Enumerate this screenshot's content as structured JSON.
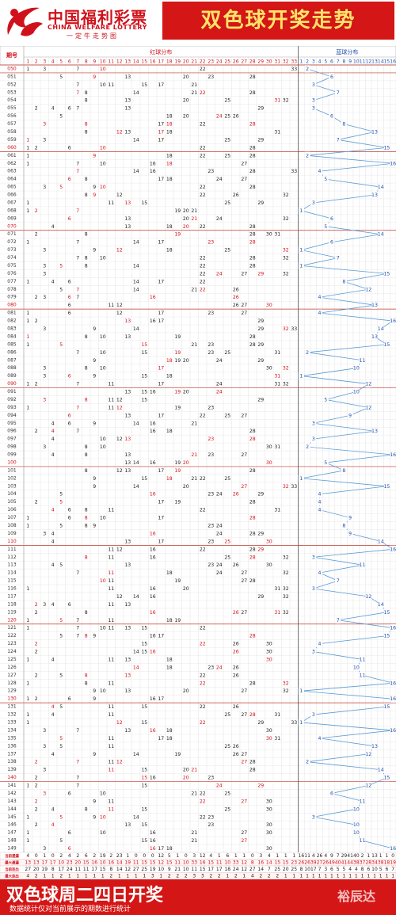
{
  "header": {
    "logo_cn": "中国福利彩票",
    "logo_en": "CHINA WELFARE LOTTERY",
    "logo_slogan": "一定牛走势图",
    "title": "双色球开奖走势"
  },
  "footer": {
    "main": "双色球周二四日开奖",
    "sub": "数据统计仅对当前展示的期数进行统计",
    "watermark": "裕辰达"
  },
  "chart_data": {
    "type": "table",
    "period_header": "期号",
    "red_header": "红球分布",
    "blue_header": "蓝球分布",
    "red_range": [
      1,
      33
    ],
    "blue_range": [
      1,
      16
    ],
    "red_color": "#d0111b",
    "blue_color": "#1f4fae",
    "line_color": "#5b9bd5",
    "draws": [
      {
        "p": "050",
        "r": [
          1,
          3,
          7,
          10,
          22,
          33
        ],
        "b": 2
      },
      {
        "p": "051",
        "r": [
          5,
          9,
          13,
          20,
          23,
          28
        ],
        "b": 6
      },
      {
        "p": "052",
        "r": [
          7,
          10,
          11,
          15,
          17,
          21
        ],
        "b": 3
      },
      {
        "p": "053",
        "r": [
          7,
          8,
          14,
          21,
          22,
          28
        ],
        "b": 7
      },
      {
        "p": "054",
        "r": [
          8,
          13,
          20,
          25,
          31,
          32
        ],
        "b": 3
      },
      {
        "p": "055",
        "r": [
          2,
          4,
          6,
          7,
          13,
          29
        ],
        "b": 3
      },
      {
        "p": "056",
        "r": [
          5,
          18,
          20,
          24,
          25,
          26
        ],
        "b": 6
      },
      {
        "p": "057",
        "r": [
          3,
          8,
          17,
          18,
          22,
          28
        ],
        "b": 8
      },
      {
        "p": "058",
        "r": [
          8,
          12,
          13,
          17,
          18,
          31
        ],
        "b": 13
      },
      {
        "p": "059",
        "r": [
          1,
          3,
          14,
          17,
          25,
          29
        ],
        "b": 7
      },
      {
        "p": "060",
        "r": [
          1,
          2,
          6,
          10,
          22,
          28
        ],
        "b": 15
      },
      {
        "p": "061",
        "r": [
          1,
          9,
          18,
          22,
          25,
          28
        ],
        "b": 2
      },
      {
        "p": "062",
        "r": [
          1,
          7,
          10,
          16,
          18,
          27
        ],
        "b": 16
      },
      {
        "p": "063",
        "r": [
          7,
          14,
          16,
          23,
          28,
          33
        ],
        "b": 4
      },
      {
        "p": "064",
        "r": [
          6,
          8,
          17,
          18,
          24,
          27
        ],
        "b": 5
      },
      {
        "p": "065",
        "r": [
          3,
          5,
          9,
          10,
          22,
          28
        ],
        "b": 14
      },
      {
        "p": "066",
        "r": [
          8,
          9,
          12,
          22,
          26,
          32
        ],
        "b": 13
      },
      {
        "p": "067",
        "r": [
          1,
          11,
          13,
          15,
          25,
          29
        ],
        "b": 3
      },
      {
        "p": "068",
        "r": [
          1,
          2,
          7,
          19,
          20,
          21
        ],
        "b": 1
      },
      {
        "p": "069",
        "r": [
          6,
          13,
          20,
          21,
          24,
          32
        ],
        "b": 6
      },
      {
        "p": "070",
        "r": [
          4,
          13,
          18,
          20,
          22,
          28
        ],
        "b": 5
      },
      {
        "p": "071",
        "r": [
          2,
          8,
          19,
          28,
          30,
          31
        ],
        "b": 14
      },
      {
        "p": "072",
        "r": [
          1,
          7,
          14,
          17,
          23,
          28
        ],
        "b": 6
      },
      {
        "p": "073",
        "r": [
          3,
          9,
          12,
          18,
          25,
          32
        ],
        "b": 1
      },
      {
        "p": "074",
        "r": [
          7,
          8,
          10,
          22,
          28,
          32
        ],
        "b": 7
      },
      {
        "p": "075",
        "r": [
          3,
          5,
          8,
          14,
          22,
          28
        ],
        "b": 1
      },
      {
        "p": "076",
        "r": [
          3,
          22,
          24,
          27,
          29,
          32
        ],
        "b": 15
      },
      {
        "p": "077",
        "r": [
          1,
          4,
          6,
          14,
          17,
          22
        ],
        "b": 8
      },
      {
        "p": "078",
        "r": [
          5,
          7,
          14,
          21,
          22,
          26
        ],
        "b": 12
      },
      {
        "p": "079",
        "r": [
          2,
          3,
          6,
          7,
          16,
          26
        ],
        "b": 4
      },
      {
        "p": "080",
        "r": [
          6,
          11,
          12,
          26,
          27,
          30
        ],
        "b": 13
      },
      {
        "p": "081",
        "r": [
          1,
          6,
          12,
          17,
          23,
          27
        ],
        "b": 4
      },
      {
        "p": "082",
        "r": [
          1,
          2,
          13,
          16,
          17,
          29
        ],
        "b": 16
      },
      {
        "p": "083",
        "r": [
          3,
          9,
          14,
          29,
          32,
          33
        ],
        "b": 14
      },
      {
        "p": "084",
        "r": [
          1,
          8,
          10,
          13,
          19,
          28
        ],
        "b": 13
      },
      {
        "p": "085",
        "r": [
          1,
          5,
          15,
          21,
          23,
          28,
          29
        ],
        "b": 15
      },
      {
        "p": "086",
        "r": [
          7,
          10,
          15,
          19,
          23,
          25,
          31
        ],
        "b": 2
      },
      {
        "p": "087",
        "r": [
          9,
          18,
          19,
          20,
          24,
          29
        ],
        "b": 11
      },
      {
        "p": "088",
        "r": [
          3,
          8,
          10,
          17,
          30,
          32
        ],
        "b": 10
      },
      {
        "p": "089",
        "r": [
          3,
          6,
          9,
          15,
          18,
          31
        ],
        "b": 1
      },
      {
        "p": "090",
        "r": [
          1,
          2,
          7,
          11,
          17,
          24,
          31,
          32
        ],
        "b": 12
      },
      {
        "p": "091",
        "r": [
          13,
          15,
          16,
          19,
          20,
          24
        ],
        "b": 10
      },
      {
        "p": "092",
        "r": [
          3,
          8,
          11,
          12,
          15,
          29
        ],
        "b": 5
      },
      {
        "p": "093",
        "r": [
          1,
          7,
          11,
          12,
          19,
          23
        ],
        "b": 12
      },
      {
        "p": "094",
        "r": [
          6,
          13,
          17,
          22,
          25,
          27
        ],
        "b": 9
      },
      {
        "p": "095",
        "r": [
          4,
          6,
          9,
          14,
          16,
          21
        ],
        "b": 3
      },
      {
        "p": "096",
        "r": [
          2,
          4,
          7,
          16,
          18,
          28
        ],
        "b": 13
      },
      {
        "p": "097",
        "r": [
          4,
          10,
          12,
          13,
          23,
          28
        ],
        "b": 3
      },
      {
        "p": "098",
        "r": [
          3,
          8,
          10,
          30,
          31
        ],
        "b": 2
      },
      {
        "p": "099",
        "r": [
          4,
          8,
          13,
          21,
          23,
          27
        ],
        "b": 16
      },
      {
        "p": "100",
        "r": [
          13,
          14,
          16,
          19,
          20,
          30
        ],
        "b": 5
      },
      {
        "p": "101",
        "r": [
          8,
          12,
          13,
          17,
          19,
          28
        ],
        "b": 8
      },
      {
        "p": "102",
        "r": [
          9,
          15,
          18,
          21,
          22,
          25
        ],
        "b": 1
      },
      {
        "p": "103",
        "r": [
          9,
          14,
          20,
          27,
          32,
          33
        ],
        "b": 15
      },
      {
        "p": "104",
        "r": [
          5,
          16,
          23,
          24,
          26,
          29
        ],
        "b": 4
      },
      {
        "p": "105",
        "r": [
          2,
          5,
          17,
          19,
          28
        ],
        "b": 4
      },
      {
        "p": "106",
        "r": [
          4,
          6,
          8,
          11,
          22,
          31
        ],
        "b": 4
      },
      {
        "p": "107",
        "r": [
          1,
          6,
          8,
          10,
          17,
          28
        ],
        "b": 9
      },
      {
        "p": "108",
        "r": [
          1,
          5,
          8,
          9,
          23,
          24
        ],
        "b": 8
      },
      {
        "p": "109",
        "r": [
          3,
          4,
          16,
          24,
          28,
          29
        ],
        "b": 9
      },
      {
        "p": "110",
        "r": [
          4,
          13,
          17,
          23,
          25,
          30
        ],
        "b": 14
      },
      {
        "p": "111",
        "r": [
          11,
          12,
          16,
          22,
          28,
          29
        ],
        "b": 16
      },
      {
        "p": "112",
        "r": [
          8,
          11,
          16,
          25,
          28,
          32
        ],
        "b": 3
      },
      {
        "p": "113",
        "r": [
          4,
          5,
          13,
          23,
          24,
          26,
          30
        ],
        "b": 11
      },
      {
        "p": "114",
        "r": [
          7,
          11,
          18,
          24,
          27,
          32
        ],
        "b": 4
      },
      {
        "p": "115",
        "r": [
          10,
          11,
          19,
          27,
          28
        ],
        "b": 7
      },
      {
        "p": "116",
        "r": [
          1,
          11,
          16,
          20,
          31,
          32
        ],
        "b": 3
      },
      {
        "p": "117",
        "r": [
          12,
          14,
          16,
          29,
          32
        ],
        "b": 12
      },
      {
        "p": "118",
        "r": [
          2,
          3,
          4,
          6,
          11,
          13
        ],
        "b": 14
      },
      {
        "p": "119",
        "r": [
          2,
          8,
          16,
          26,
          27,
          31,
          32
        ],
        "b": 15
      },
      {
        "p": "120",
        "r": [
          1,
          5,
          7,
          11,
          18,
          19
        ],
        "b": 7
      },
      {
        "p": "121",
        "r": [
          1,
          7,
          10,
          11,
          13,
          15,
          22
        ],
        "b": 16
      },
      {
        "p": "122",
        "r": [
          5,
          7,
          8,
          9,
          16,
          17,
          28
        ],
        "b": 15
      },
      {
        "p": "123",
        "r": [
          2,
          15,
          22,
          26,
          30
        ],
        "b": 4
      },
      {
        "p": "124",
        "r": [
          2,
          14,
          15,
          16,
          26,
          30
        ],
        "b": 3
      },
      {
        "p": "125",
        "r": [
          1,
          4,
          11,
          13,
          18,
          30
        ],
        "b": 11
      },
      {
        "p": "126",
        "r": [
          14,
          18,
          23,
          24,
          26
        ],
        "b": 10
      },
      {
        "p": "127",
        "r": [
          2,
          5,
          8,
          13,
          22,
          26
        ],
        "b": 11
      },
      {
        "p": "128",
        "r": [
          1,
          8,
          11,
          22,
          28,
          32
        ],
        "b": 16
      },
      {
        "p": "129",
        "r": [
          9,
          10,
          13,
          20,
          27,
          32
        ],
        "b": 1
      },
      {
        "p": "130",
        "r": [
          1,
          2,
          6,
          9,
          16,
          17
        ],
        "b": 16
      },
      {
        "p": "131",
        "r": [
          4,
          5,
          11,
          15,
          22,
          26
        ],
        "b": 15
      },
      {
        "p": "132",
        "r": [
          1,
          4,
          11,
          25,
          27,
          28,
          31
        ],
        "b": 3
      },
      {
        "p": "133",
        "r": [
          1,
          12,
          15,
          22,
          29,
          33
        ],
        "b": 1
      },
      {
        "p": "134",
        "r": [
          3,
          7,
          13,
          16,
          18,
          30
        ],
        "b": 16
      },
      {
        "p": "135",
        "r": [
          5,
          11,
          17,
          18,
          30,
          31
        ],
        "b": 4
      },
      {
        "p": "136",
        "r": [
          3,
          5,
          11,
          25,
          26
        ],
        "b": 13
      },
      {
        "p": "137",
        "r": [
          4,
          9,
          14,
          19,
          26,
          27
        ],
        "b": 12
      },
      {
        "p": "138",
        "r": [
          2,
          7,
          11,
          12,
          27,
          28
        ],
        "b": 2
      },
      {
        "p": "139",
        "r": [
          3,
          11,
          15,
          20,
          21,
          28
        ],
        "b": 14
      },
      {
        "p": "140",
        "r": [
          2,
          7,
          15,
          16,
          20,
          23
        ],
        "b": 15
      },
      {
        "p": "141",
        "r": [
          1,
          2,
          7,
          15,
          24,
          29
        ],
        "b": 12
      },
      {
        "p": "142",
        "r": [
          3,
          6,
          10,
          21,
          22,
          25
        ],
        "b": 6
      },
      {
        "p": "143",
        "r": [
          2,
          9,
          11,
          22,
          27,
          30
        ],
        "b": 11
      },
      {
        "p": "144",
        "r": [
          2,
          4,
          8,
          11,
          15,
          25,
          30
        ],
        "b": 10
      },
      {
        "p": "145",
        "r": [
          1,
          5,
          9,
          10,
          14,
          22,
          23
        ],
        "b": 3
      },
      {
        "p": "146",
        "r": [
          2,
          4,
          13,
          15,
          23,
          30
        ],
        "b": 10
      },
      {
        "p": "147",
        "r": [
          1,
          6,
          10,
          16,
          21,
          27,
          30
        ],
        "b": 10
      },
      {
        "p": "148",
        "r": [
          1,
          5,
          15,
          16,
          21,
          27
        ],
        "b": 11
      },
      {
        "p": "149",
        "r": [
          3,
          6,
          16,
          17,
          18,
          30
        ],
        "b": 16
      }
    ],
    "stats": [
      {
        "label": "当前遗漏",
        "red": [
          4,
          0,
          1,
          0,
          2,
          4,
          2,
          6,
          2,
          19,
          2,
          23,
          1,
          0,
          0,
          0,
          12,
          5,
          1,
          0,
          3,
          12,
          4,
          1,
          6,
          1,
          1,
          0,
          3,
          4,
          1,
          1,
          1
        ],
        "blue": [
          16,
          11,
          4,
          26,
          4,
          9,
          7,
          29,
          41,
          40,
          2,
          1,
          13,
          1,
          1,
          0
        ]
      },
      {
        "label": "最大遗漏",
        "red": [
          13,
          13,
          17,
          17,
          10,
          23,
          20,
          15,
          16,
          10,
          16,
          14,
          19,
          11,
          15,
          15,
          12,
          15,
          11,
          10,
          33,
          16,
          15,
          11,
          10,
          33,
          12,
          8,
          16,
          14,
          15,
          15,
          23
        ],
        "blue": [
          26,
          26,
          39,
          27,
          26,
          49,
          40,
          41,
          44,
          38,
          37,
          28,
          34,
          38,
          18,
          19
        ]
      },
      {
        "label": "当前连出",
        "red": [
          27,
          20,
          19,
          8,
          17,
          24,
          11,
          11,
          17,
          15,
          8,
          14,
          12,
          27,
          25,
          19,
          10,
          9,
          21,
          10,
          11,
          15,
          17,
          17,
          18,
          24,
          12,
          27,
          14,
          7,
          25,
          20,
          25
        ],
        "blue": [
          8,
          10,
          17,
          7,
          3,
          6,
          5,
          5,
          4,
          4,
          8,
          6,
          10,
          5,
          6,
          7
        ]
      },
      {
        "label": "最大连出",
        "red": [
          4,
          2,
          1,
          1,
          2,
          1,
          1,
          1,
          1,
          1,
          2,
          1,
          1,
          1,
          1,
          3,
          1,
          2,
          2,
          2,
          3,
          3,
          2,
          2,
          1,
          2,
          1,
          4,
          2,
          2,
          2,
          1,
          1
        ],
        "blue": [
          1,
          1,
          1,
          1,
          1,
          1,
          1,
          1,
          1,
          1,
          1,
          1,
          1,
          1,
          1,
          1
        ]
      }
    ]
  }
}
